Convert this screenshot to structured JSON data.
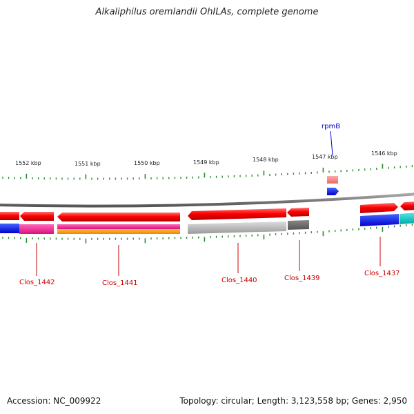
{
  "title": "Alkaliphilus oremlandii OhILAs, complete genome",
  "footer": {
    "accession": "Accession: NC_009922",
    "info": "Topology: circular; Length: 3,123,558 bp; Genes: 2,950"
  },
  "ruler": {
    "ticks": [
      {
        "label": "1552 kbp"
      },
      {
        "label": "1551 kbp"
      },
      {
        "label": "1550 kbp"
      },
      {
        "label": "1549 kbp"
      },
      {
        "label": "1548 kbp"
      },
      {
        "label": "1547 kbp"
      },
      {
        "label": "1546 kbp"
      }
    ]
  },
  "genes": [
    {
      "name": "Clos_1442",
      "color": "#cc0000"
    },
    {
      "name": "Clos_1441",
      "color": "#cc0000"
    },
    {
      "name": "Clos_1440",
      "color": "#cc0000"
    },
    {
      "name": "Clos_1439",
      "color": "#cc0000"
    },
    {
      "name": "Clos_1437",
      "color": "#cc0000"
    },
    {
      "name": "rpmB",
      "color": "#0000cc"
    }
  ],
  "colors": {
    "cds": "#ff0000",
    "backbone": "#808080",
    "tick": "#2a8a2a",
    "blue": "#0000ff",
    "magenta": "#ff3399",
    "orange": "#ff9900",
    "gray": "#b0b0b0",
    "darkgray": "#666666",
    "cyan": "#00cccc",
    "pink": "#ff8888"
  }
}
